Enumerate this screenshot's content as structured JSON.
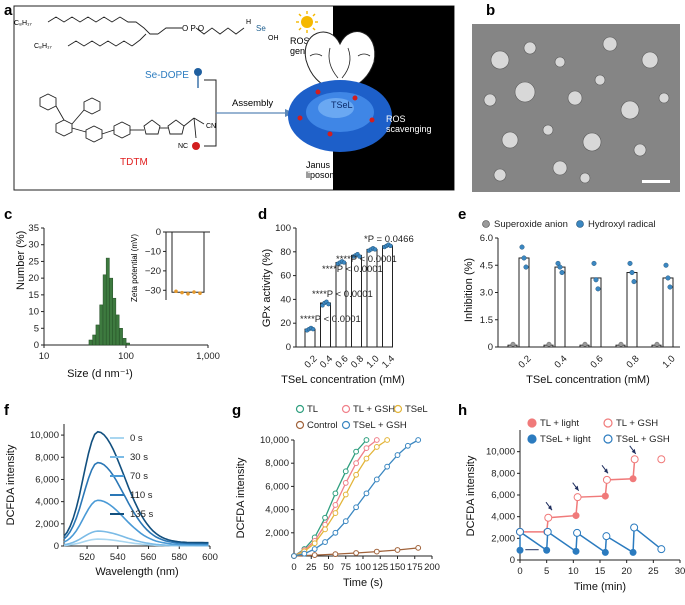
{
  "panels": {
    "a": "a",
    "b": "b",
    "c": "c",
    "d": "d",
    "e": "e",
    "f": "f",
    "g": "g",
    "h": "h"
  },
  "panel_a": {
    "chain1": "C₈H₁₇",
    "chain2": "C₈H₁₇",
    "nh": "H",
    "se": "Se",
    "oh": "OH",
    "ros_generation": "ROS\ngeneration",
    "se_dope": "Se-DOPE",
    "assembly": "Assembly",
    "tdtm": "TDTM",
    "tsel": "TSeL",
    "ros_scavenging": "ROS\nscavenging",
    "janus": "Janus\nliposome",
    "cn": "CN",
    "nc": "NC"
  },
  "colors": {
    "green": "#3d7a3f",
    "blue_dark": "#1f5f8f",
    "blue_mid": "#3b87c1",
    "salmon": "#f0808a",
    "teal": "#2f9f7f",
    "gold": "#e3b53a",
    "brown": "#a0623a",
    "orange": "#e59a2e"
  },
  "chart_data": [
    {
      "id": "c",
      "type": "bar",
      "title": "",
      "xlabel": "Size (d nm⁻¹)",
      "ylabel": "Number (%)",
      "xscale": "log",
      "xlim": [
        10,
        1000
      ],
      "ylim": [
        0,
        35
      ],
      "xticks": [
        "10",
        "100",
        "1,000"
      ],
      "yticks": [
        "0",
        "5",
        "10",
        "15",
        "20",
        "25",
        "30",
        "35"
      ],
      "x": [
        37,
        41,
        45,
        50,
        55,
        60,
        66,
        72,
        79,
        87,
        96,
        106
      ],
      "values": [
        1.5,
        3,
        6,
        12,
        21,
        26,
        20,
        14,
        9,
        5,
        2,
        0.6
      ],
      "inset": {
        "ylabel": "Zeta potential (mV)",
        "ylim": [
          -35,
          0
        ],
        "yticks": [
          "0",
          "−10",
          "−20",
          "−30"
        ],
        "mean": -31,
        "points": [
          -30.5,
          -31.2,
          -31.8,
          -30.9,
          -31.5
        ]
      }
    },
    {
      "id": "d",
      "type": "bar",
      "xlabel": "TSeL concentration (mM)",
      "ylabel": "GPx activity (%)",
      "ylim": [
        0,
        100
      ],
      "yticks": [
        "0",
        "20",
        "40",
        "60",
        "80",
        "100"
      ],
      "categories": [
        "0.2",
        "0.4",
        "0.6",
        "0.8",
        "1.0",
        "1.4"
      ],
      "values": [
        15,
        37,
        71,
        77,
        82,
        85
      ],
      "points": [
        [
          14,
          15,
          16,
          15
        ],
        [
          35,
          37,
          38,
          36
        ],
        [
          70,
          71,
          72,
          71
        ],
        [
          76,
          77,
          78,
          76
        ],
        [
          81,
          82,
          83,
          82
        ],
        [
          84,
          85,
          86,
          85
        ]
      ],
      "annotations": [
        "****P < 0.0001",
        "****P < 0.0001",
        "****P < 0.0001",
        "****P < 0.0001",
        "*P = 0.0466"
      ]
    },
    {
      "id": "e",
      "type": "bar",
      "xlabel": "TSeL concentration (mM)",
      "ylabel": "Inhibition (%)",
      "ylim": [
        0,
        6
      ],
      "yticks": [
        "0",
        "1.5",
        "3.0",
        "4.5",
        "6.0"
      ],
      "categories": [
        "0.2",
        "0.4",
        "0.6",
        "0.8",
        "1.0"
      ],
      "series": [
        {
          "name": "Superoxide anion",
          "values": [
            0.1,
            0.1,
            0.1,
            0.1,
            0.1
          ]
        },
        {
          "name": "Hydroxyl radical",
          "values": [
            4.9,
            4.4,
            3.8,
            4.1,
            3.8
          ]
        }
      ],
      "hydroxyl_points": [
        [
          5.5,
          4.9,
          4.4
        ],
        [
          4.6,
          4.4,
          4.1
        ],
        [
          4.6,
          3.7,
          3.2
        ],
        [
          4.6,
          4.1,
          3.6
        ],
        [
          4.5,
          3.8,
          3.3
        ]
      ]
    },
    {
      "id": "f",
      "type": "line",
      "xlabel": "Wavelength (nm)",
      "ylabel": "DCFDA intensity",
      "xlim": [
        505,
        600
      ],
      "ylim": [
        0,
        11000
      ],
      "xticks": [
        "520",
        "540",
        "560",
        "580",
        "600"
      ],
      "yticks": [
        "0",
        "2,000",
        "4,000",
        "6,000",
        "8,000",
        "10,000"
      ],
      "series": [
        {
          "name": "0 s",
          "peak": 600
        },
        {
          "name": "30 s",
          "peak": 1300
        },
        {
          "name": "70 s",
          "peak": 4000
        },
        {
          "name": "110 s",
          "peak": 7300
        },
        {
          "name": "135 s",
          "peak": 10000
        }
      ]
    },
    {
      "id": "g",
      "type": "line",
      "xlabel": "Time (s)",
      "ylabel": "DCFDA intensity",
      "xlim": [
        0,
        200
      ],
      "ylim": [
        0,
        10000
      ],
      "xticks": [
        "0",
        "25",
        "50",
        "75",
        "100",
        "125",
        "150",
        "175",
        "200"
      ],
      "yticks": [
        "2,000",
        "4,000",
        "6,000",
        "8,000",
        "10,000"
      ],
      "series": [
        {
          "name": "TL",
          "x": [
            0,
            15,
            30,
            45,
            60,
            75,
            90,
            105
          ],
          "y": [
            0,
            600,
            1600,
            3300,
            5400,
            7300,
            9000,
            10000
          ]
        },
        {
          "name": "TL + GSH",
          "x": [
            0,
            15,
            30,
            45,
            60,
            75,
            90,
            105,
            120
          ],
          "y": [
            0,
            500,
            1300,
            2700,
            4400,
            6300,
            8000,
            9300,
            10000
          ]
        },
        {
          "name": "TSeL",
          "x": [
            0,
            15,
            30,
            45,
            60,
            75,
            90,
            105,
            120,
            135
          ],
          "y": [
            0,
            400,
            1100,
            2300,
            3700,
            5300,
            7000,
            8400,
            9400,
            10000
          ]
        },
        {
          "name": "Control",
          "x": [
            0,
            30,
            60,
            90,
            120,
            150,
            180
          ],
          "y": [
            0,
            80,
            160,
            260,
            380,
            520,
            700
          ]
        },
        {
          "name": "TSeL + GSH",
          "x": [
            0,
            15,
            30,
            45,
            60,
            75,
            90,
            105,
            120,
            135,
            150,
            165,
            180
          ],
          "y": [
            0,
            200,
            600,
            1200,
            2000,
            3000,
            4200,
            5400,
            6600,
            7700,
            8700,
            9500,
            10000
          ]
        }
      ]
    },
    {
      "id": "h",
      "type": "line",
      "xlabel": "Time (min)",
      "ylabel": "DCFDA intensity",
      "xlim": [
        0,
        30
      ],
      "ylim": [
        0,
        12000
      ],
      "xticks": [
        "0",
        "5",
        "10",
        "15",
        "20",
        "25",
        "30"
      ],
      "yticks": [
        "0",
        "2,000",
        "4,000",
        "6,000",
        "8,000",
        "10,000"
      ],
      "series": [
        {
          "name": "TL + light",
          "x": [
            0,
            5,
            5.3,
            10.5,
            10.8,
            16,
            16.3,
            21.2,
            21.5
          ],
          "y": [
            2600,
            2600,
            3900,
            4100,
            5800,
            5900,
            7400,
            7500,
            9300
          ]
        },
        {
          "name": "TL + GSH",
          "x": [
            0,
            5.3,
            10.8,
            16.3,
            21.5,
            26.5
          ],
          "y": [
            2600,
            3900,
            5800,
            7400,
            9300,
            9300
          ]
        },
        {
          "name": "TSeL + light",
          "x": [
            0,
            0,
            5,
            5.2,
            10.5,
            10.7,
            16,
            16.2,
            21.2,
            21.4
          ],
          "y": [
            900,
            2600,
            900,
            2600,
            800,
            2500,
            700,
            2200,
            700,
            3000
          ]
        },
        {
          "name": "TSeL + GSH",
          "x": [
            0,
            5.2,
            10.7,
            16.2,
            21.4,
            26.5
          ],
          "y": [
            2600,
            2600,
            2500,
            2200,
            3000,
            1000
          ]
        }
      ]
    }
  ]
}
